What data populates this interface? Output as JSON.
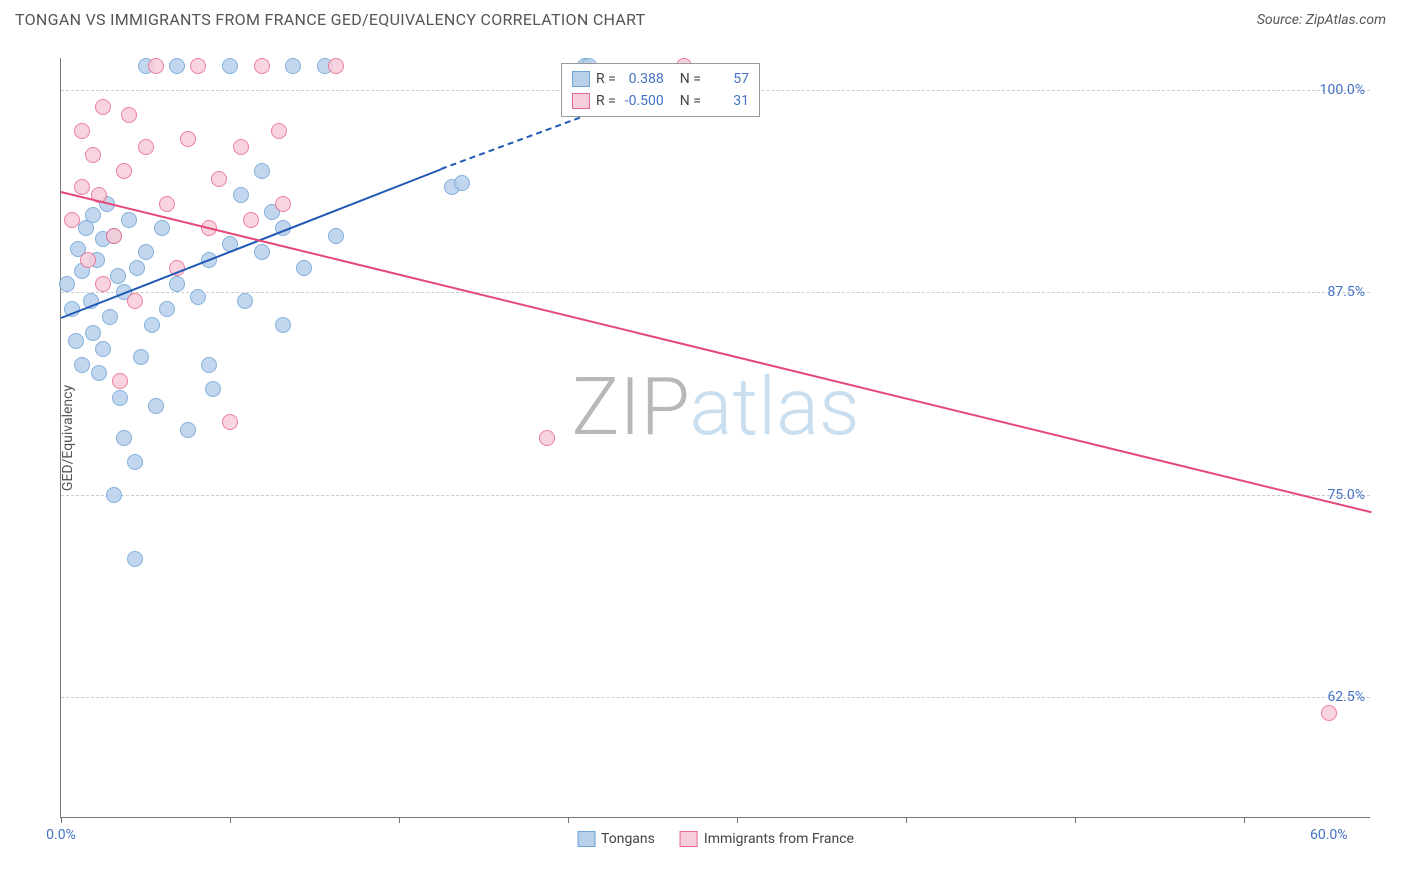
{
  "title": "TONGAN VS IMMIGRANTS FROM FRANCE GED/EQUIVALENCY CORRELATION CHART",
  "source": "Source: ZipAtlas.com",
  "ylabel": "GED/Equivalency",
  "watermark_a": "ZIP",
  "watermark_b": "atlas",
  "chart": {
    "type": "scatter",
    "xmin": 0,
    "xmax": 62,
    "ymin": 55,
    "ymax": 102,
    "xtick_positions": [
      0,
      8,
      16,
      24,
      32,
      40,
      48,
      56
    ],
    "xtick_labels_visible": {
      "0": "0.0%",
      "60": "60.0%"
    },
    "ytick_positions": [
      62.5,
      75.0,
      87.5,
      100.0
    ],
    "ytick_labels": [
      "62.5%",
      "75.0%",
      "87.5%",
      "100.0%"
    ],
    "grid_color": "#cccccc"
  },
  "series": [
    {
      "name": "Tongans",
      "color_fill": "#b8d1ea",
      "color_stroke": "#6fa3d9",
      "marker_radius": 8,
      "R": "0.388",
      "N": "57",
      "trend": {
        "x1": 0,
        "y1": 86.0,
        "x2": 18,
        "y2": 95.2,
        "color": "#2059b6",
        "ext_x2": 30,
        "ext_y2": 101
      },
      "points": [
        [
          0.3,
          88.0
        ],
        [
          0.5,
          86.5
        ],
        [
          0.7,
          84.5
        ],
        [
          0.8,
          90.2
        ],
        [
          1.0,
          83.0
        ],
        [
          1.0,
          88.8
        ],
        [
          1.2,
          91.5
        ],
        [
          1.4,
          87.0
        ],
        [
          1.5,
          92.3
        ],
        [
          1.5,
          85.0
        ],
        [
          1.7,
          89.5
        ],
        [
          1.8,
          82.5
        ],
        [
          2.0,
          84.0
        ],
        [
          2.0,
          90.8
        ],
        [
          2.2,
          93.0
        ],
        [
          2.3,
          86.0
        ],
        [
          2.5,
          75.0
        ],
        [
          2.5,
          91.0
        ],
        [
          2.7,
          88.5
        ],
        [
          2.8,
          81.0
        ],
        [
          3.0,
          87.5
        ],
        [
          3.0,
          78.5
        ],
        [
          3.2,
          92.0
        ],
        [
          3.5,
          71.0
        ],
        [
          3.5,
          77.0
        ],
        [
          3.6,
          89.0
        ],
        [
          3.8,
          83.5
        ],
        [
          4.0,
          90.0
        ],
        [
          4.0,
          101.5
        ],
        [
          4.3,
          85.5
        ],
        [
          4.5,
          80.5
        ],
        [
          4.8,
          91.5
        ],
        [
          5.0,
          86.5
        ],
        [
          5.5,
          101.5
        ],
        [
          5.5,
          88.0
        ],
        [
          6.0,
          79.0
        ],
        [
          6.5,
          87.2
        ],
        [
          7.0,
          83.0
        ],
        [
          7.0,
          89.5
        ],
        [
          7.2,
          81.5
        ],
        [
          8.0,
          90.5
        ],
        [
          8.0,
          101.5
        ],
        [
          8.5,
          93.5
        ],
        [
          8.7,
          87.0
        ],
        [
          9.5,
          90.0
        ],
        [
          9.5,
          95.0
        ],
        [
          10.0,
          92.5
        ],
        [
          10.5,
          85.5
        ],
        [
          10.5,
          91.5
        ],
        [
          11.0,
          101.5
        ],
        [
          11.5,
          89.0
        ],
        [
          12.5,
          101.5
        ],
        [
          13.0,
          91.0
        ],
        [
          18.5,
          94.0
        ],
        [
          19.0,
          94.3
        ],
        [
          24.8,
          101.5
        ],
        [
          25.0,
          101.5
        ]
      ]
    },
    {
      "name": "Immigrants from France",
      "color_fill": "#f7cdd9",
      "color_stroke": "#e96a91",
      "marker_radius": 8,
      "R": "-0.500",
      "N": "31",
      "trend": {
        "x1": 0,
        "y1": 93.8,
        "x2": 62,
        "y2": 74.0,
        "color": "#e6487a"
      },
      "points": [
        [
          0.5,
          92.0
        ],
        [
          1.0,
          97.5
        ],
        [
          1.0,
          94.0
        ],
        [
          1.3,
          89.5
        ],
        [
          1.5,
          96.0
        ],
        [
          1.8,
          93.5
        ],
        [
          2.0,
          88.0
        ],
        [
          2.0,
          99.0
        ],
        [
          2.5,
          91.0
        ],
        [
          2.8,
          82.0
        ],
        [
          3.0,
          95.0
        ],
        [
          3.2,
          98.5
        ],
        [
          3.5,
          87.0
        ],
        [
          4.0,
          96.5
        ],
        [
          4.5,
          101.5
        ],
        [
          5.0,
          93.0
        ],
        [
          5.5,
          89.0
        ],
        [
          6.0,
          97.0
        ],
        [
          6.5,
          101.5
        ],
        [
          7.0,
          91.5
        ],
        [
          7.5,
          94.5
        ],
        [
          8.0,
          79.5
        ],
        [
          8.5,
          96.5
        ],
        [
          9.0,
          92.0
        ],
        [
          9.5,
          101.5
        ],
        [
          10.3,
          97.5
        ],
        [
          10.5,
          93.0
        ],
        [
          13.0,
          101.5
        ],
        [
          23.0,
          78.5
        ],
        [
          29.5,
          101.5
        ],
        [
          60.0,
          61.5
        ]
      ]
    }
  ],
  "legend_top": {
    "rows": [
      {
        "swatch_fill": "#b8d1ea",
        "swatch_stroke": "#6fa3d9",
        "r_label": "R =",
        "r_val": "0.388",
        "n_label": "N =",
        "n_val": "57"
      },
      {
        "swatch_fill": "#f7cdd9",
        "swatch_stroke": "#e96a91",
        "r_label": "R =",
        "r_val": "-0.500",
        "n_label": "N =",
        "n_val": "31"
      }
    ]
  },
  "legend_bottom": [
    {
      "swatch_fill": "#b8d1ea",
      "swatch_stroke": "#6fa3d9",
      "label": "Tongans"
    },
    {
      "swatch_fill": "#f7cdd9",
      "swatch_stroke": "#e96a91",
      "label": "Immigrants from France"
    }
  ]
}
